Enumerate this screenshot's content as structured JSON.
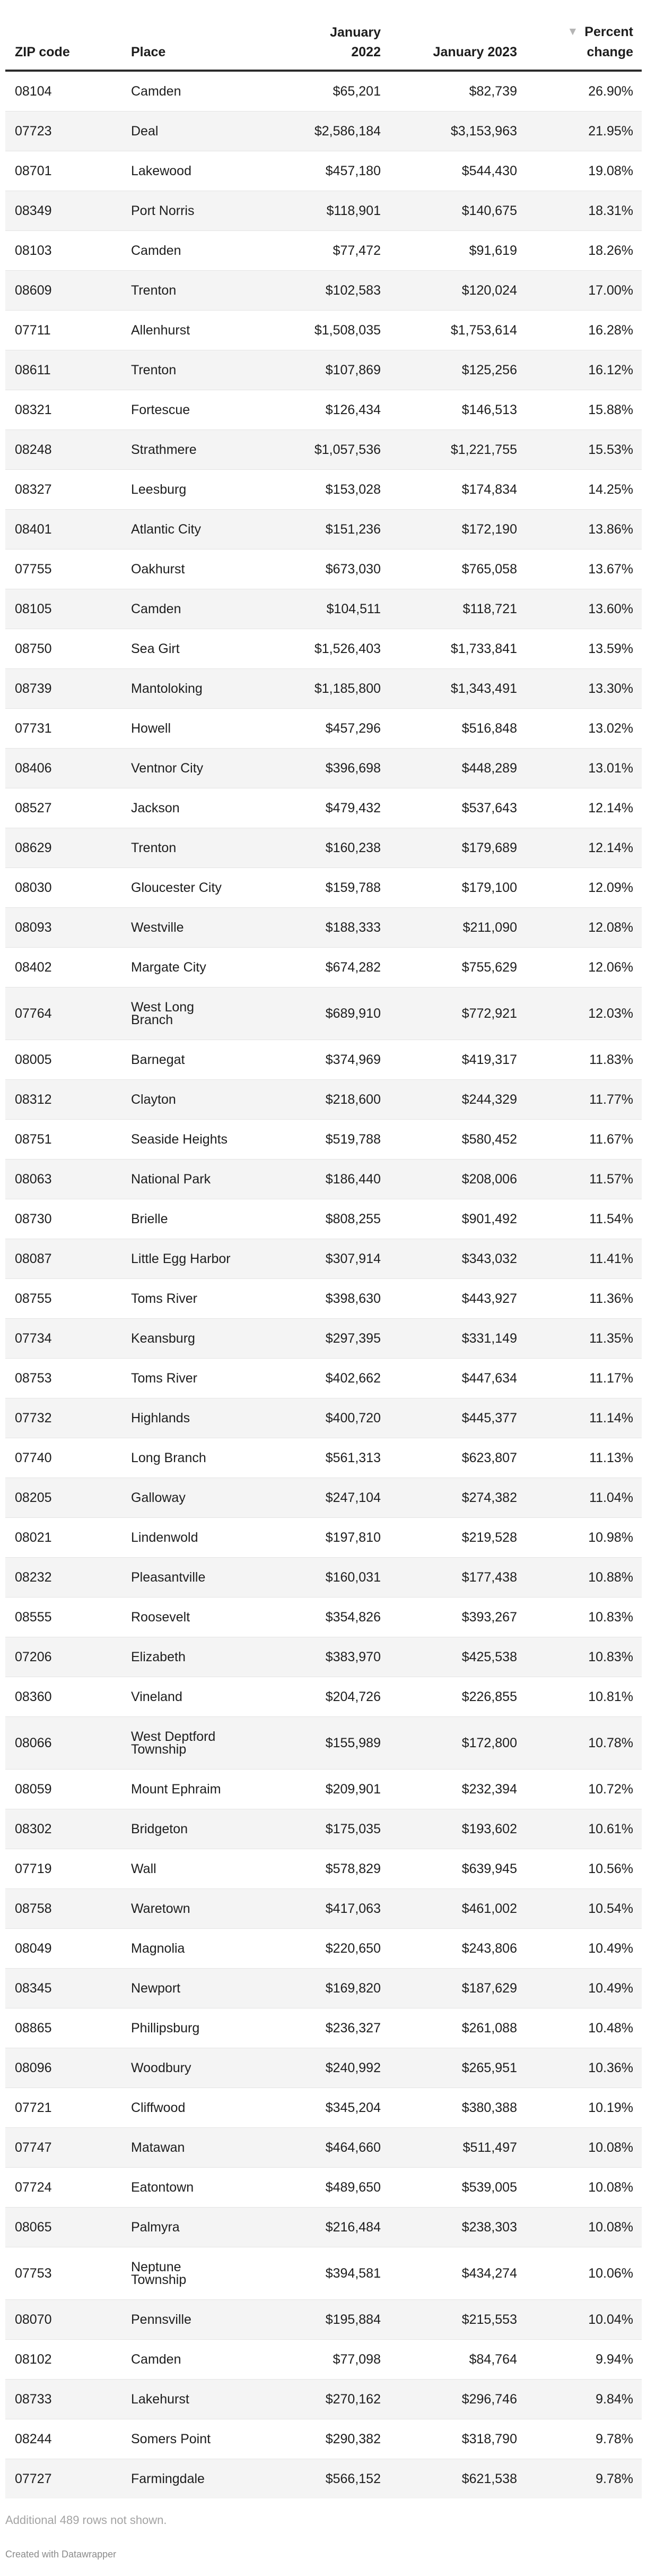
{
  "chart_data": {
    "type": "table",
    "columns": [
      "ZIP code",
      "Place",
      "January 2022",
      "January 2023",
      "Percent change"
    ],
    "sort": {
      "column": "Percent change",
      "direction": "descending"
    },
    "rows": [
      [
        "08104",
        "Camden",
        "$65,201",
        "$82,739",
        "26.90%"
      ],
      [
        "07723",
        "Deal",
        "$2,586,184",
        "$3,153,963",
        "21.95%"
      ],
      [
        "08701",
        "Lakewood",
        "$457,180",
        "$544,430",
        "19.08%"
      ],
      [
        "08349",
        "Port Norris",
        "$118,901",
        "$140,675",
        "18.31%"
      ],
      [
        "08103",
        "Camden",
        "$77,472",
        "$91,619",
        "18.26%"
      ],
      [
        "08609",
        "Trenton",
        "$102,583",
        "$120,024",
        "17.00%"
      ],
      [
        "07711",
        "Allenhurst",
        "$1,508,035",
        "$1,753,614",
        "16.28%"
      ],
      [
        "08611",
        "Trenton",
        "$107,869",
        "$125,256",
        "16.12%"
      ],
      [
        "08321",
        "Fortescue",
        "$126,434",
        "$146,513",
        "15.88%"
      ],
      [
        "08248",
        "Strathmere",
        "$1,057,536",
        "$1,221,755",
        "15.53%"
      ],
      [
        "08327",
        "Leesburg",
        "$153,028",
        "$174,834",
        "14.25%"
      ],
      [
        "08401",
        "Atlantic City",
        "$151,236",
        "$172,190",
        "13.86%"
      ],
      [
        "07755",
        "Oakhurst",
        "$673,030",
        "$765,058",
        "13.67%"
      ],
      [
        "08105",
        "Camden",
        "$104,511",
        "$118,721",
        "13.60%"
      ],
      [
        "08750",
        "Sea Girt",
        "$1,526,403",
        "$1,733,841",
        "13.59%"
      ],
      [
        "08739",
        "Mantoloking",
        "$1,185,800",
        "$1,343,491",
        "13.30%"
      ],
      [
        "07731",
        "Howell",
        "$457,296",
        "$516,848",
        "13.02%"
      ],
      [
        "08406",
        "Ventnor City",
        "$396,698",
        "$448,289",
        "13.01%"
      ],
      [
        "08527",
        "Jackson",
        "$479,432",
        "$537,643",
        "12.14%"
      ],
      [
        "08629",
        "Trenton",
        "$160,238",
        "$179,689",
        "12.14%"
      ],
      [
        "08030",
        "Gloucester City",
        "$159,788",
        "$179,100",
        "12.09%"
      ],
      [
        "08093",
        "Westville",
        "$188,333",
        "$211,090",
        "12.08%"
      ],
      [
        "08402",
        "Margate City",
        "$674,282",
        "$755,629",
        "12.06%"
      ],
      [
        "07764",
        "West Long\nBranch",
        "$689,910",
        "$772,921",
        "12.03%"
      ],
      [
        "08005",
        "Barnegat",
        "$374,969",
        "$419,317",
        "11.83%"
      ],
      [
        "08312",
        "Clayton",
        "$218,600",
        "$244,329",
        "11.77%"
      ],
      [
        "08751",
        "Seaside Heights",
        "$519,788",
        "$580,452",
        "11.67%"
      ],
      [
        "08063",
        "National Park",
        "$186,440",
        "$208,006",
        "11.57%"
      ],
      [
        "08730",
        "Brielle",
        "$808,255",
        "$901,492",
        "11.54%"
      ],
      [
        "08087",
        "Little Egg Harbor",
        "$307,914",
        "$343,032",
        "11.41%"
      ],
      [
        "08755",
        "Toms River",
        "$398,630",
        "$443,927",
        "11.36%"
      ],
      [
        "07734",
        "Keansburg",
        "$297,395",
        "$331,149",
        "11.35%"
      ],
      [
        "08753",
        "Toms River",
        "$402,662",
        "$447,634",
        "11.17%"
      ],
      [
        "07732",
        "Highlands",
        "$400,720",
        "$445,377",
        "11.14%"
      ],
      [
        "07740",
        "Long Branch",
        "$561,313",
        "$623,807",
        "11.13%"
      ],
      [
        "08205",
        "Galloway",
        "$247,104",
        "$274,382",
        "11.04%"
      ],
      [
        "08021",
        "Lindenwold",
        "$197,810",
        "$219,528",
        "10.98%"
      ],
      [
        "08232",
        "Pleasantville",
        "$160,031",
        "$177,438",
        "10.88%"
      ],
      [
        "08555",
        "Roosevelt",
        "$354,826",
        "$393,267",
        "10.83%"
      ],
      [
        "07206",
        "Elizabeth",
        "$383,970",
        "$425,538",
        "10.83%"
      ],
      [
        "08360",
        "Vineland",
        "$204,726",
        "$226,855",
        "10.81%"
      ],
      [
        "08066",
        "West Deptford\nTownship",
        "$155,989",
        "$172,800",
        "10.78%"
      ],
      [
        "08059",
        "Mount Ephraim",
        "$209,901",
        "$232,394",
        "10.72%"
      ],
      [
        "08302",
        "Bridgeton",
        "$175,035",
        "$193,602",
        "10.61%"
      ],
      [
        "07719",
        "Wall",
        "$578,829",
        "$639,945",
        "10.56%"
      ],
      [
        "08758",
        "Waretown",
        "$417,063",
        "$461,002",
        "10.54%"
      ],
      [
        "08049",
        "Magnolia",
        "$220,650",
        "$243,806",
        "10.49%"
      ],
      [
        "08345",
        "Newport",
        "$169,820",
        "$187,629",
        "10.49%"
      ],
      [
        "08865",
        "Phillipsburg",
        "$236,327",
        "$261,088",
        "10.48%"
      ],
      [
        "08096",
        "Woodbury",
        "$240,992",
        "$265,951",
        "10.36%"
      ],
      [
        "07721",
        "Cliffwood",
        "$345,204",
        "$380,388",
        "10.19%"
      ],
      [
        "07747",
        "Matawan",
        "$464,660",
        "$511,497",
        "10.08%"
      ],
      [
        "07724",
        "Eatontown",
        "$489,650",
        "$539,005",
        "10.08%"
      ],
      [
        "08065",
        "Palmyra",
        "$216,484",
        "$238,303",
        "10.08%"
      ],
      [
        "07753",
        "Neptune\nTownship",
        "$394,581",
        "$434,274",
        "10.06%"
      ],
      [
        "08070",
        "Pennsville",
        "$195,884",
        "$215,553",
        "10.04%"
      ],
      [
        "08102",
        "Camden",
        "$77,098",
        "$84,764",
        "9.94%"
      ],
      [
        "08733",
        "Lakehurst",
        "$270,162",
        "$296,746",
        "9.84%"
      ],
      [
        "08244",
        "Somers Point",
        "$290,382",
        "$318,790",
        "9.78%"
      ],
      [
        "07727",
        "Farmingdale",
        "$566,152",
        "$621,538",
        "9.78%"
      ]
    ]
  },
  "table": {
    "headers": {
      "zip": "ZIP code",
      "place": "Place",
      "jan2022": "January 2022",
      "jan2023": "January 2023",
      "percent_line1": "Percent",
      "percent_line2": "change"
    },
    "sort_icon": "▼"
  },
  "footer": {
    "note": "Additional 489 rows not shown.",
    "attribution": "Created with Datawrapper"
  },
  "colors": {
    "text": "#1d1d1d",
    "header_divider": "#2b2b2b",
    "stripe": "#f4f4f4",
    "row_border": "#e4e4e4",
    "sort_arrow": "#b5b5b5",
    "note_text": "#a3a3a3",
    "attribution_text": "#8c8c8c"
  }
}
